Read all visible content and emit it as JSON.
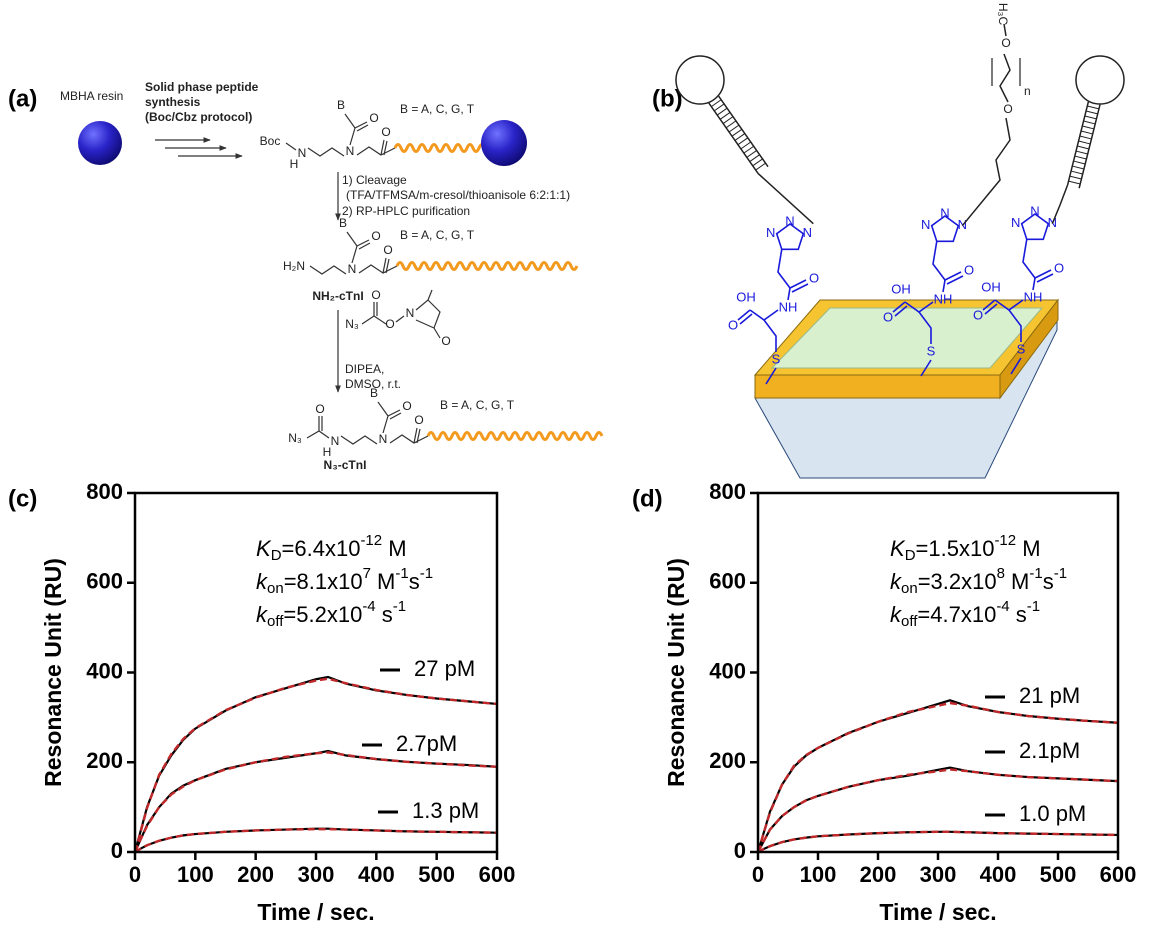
{
  "panel_a": {
    "label": "(a)",
    "resin": "MBHA resin",
    "step1": [
      "Solid phase peptide",
      "synthesis",
      "(Boc/Cbz protocol)"
    ],
    "bases": [
      "B = A, C, G, T",
      "B = A, C, G, T",
      "B = A, C, G, T"
    ],
    "s1": [
      "Boc",
      "N",
      "H",
      "N",
      "B",
      "O",
      "O"
    ],
    "cleavage": [
      "1) Cleavage",
      "(TFA/TFMSA/m-cresol/thioanisole 6:2:1:1)",
      "2) RP-HPLC purification"
    ],
    "s2": [
      "H₂N",
      "N",
      "B",
      "O",
      "O"
    ],
    "product1": "NH₂-cTnI",
    "reagent": [
      "N₃",
      "O",
      "N",
      "O",
      "O"
    ],
    "conditions": [
      "DIPEA,",
      "DMSO, r.t."
    ],
    "s3": [
      "N₃",
      "O",
      "N",
      "H",
      "N",
      "B",
      "O",
      "O"
    ],
    "product2": "N₃-cTnI"
  },
  "panel_b": {
    "label": "(b)",
    "units": [
      [
        "N",
        "N",
        "N",
        "O",
        "NH",
        "OH",
        "O",
        "S"
      ],
      [
        "N",
        "N",
        "N",
        "O",
        "NH",
        "OH",
        "O",
        "S"
      ],
      [
        "N",
        "N",
        "N",
        "O",
        "NH",
        "OH",
        "O",
        "S"
      ]
    ],
    "peg": [
      "O",
      "O",
      "n",
      "H₃C"
    ]
  },
  "chart_data": [
    {
      "type": "line",
      "label": "(c)",
      "xlabel": "Time / sec.",
      "ylabel": "Resonance Unit (RU)",
      "annotations": [
        [
          [
            "K",
            "i"
          ],
          [
            "D",
            "sub"
          ],
          [
            "=6.4x10",
            ""
          ],
          [
            "-12",
            "sup"
          ],
          [
            " M",
            ""
          ]
        ],
        [
          [
            "k",
            "i"
          ],
          [
            "on",
            "sub"
          ],
          [
            "=8.1x10",
            ""
          ],
          [
            "7",
            "sup"
          ],
          [
            " M",
            ""
          ],
          [
            "-1",
            "sup"
          ],
          [
            "s",
            ""
          ],
          [
            "-1",
            "sup"
          ]
        ],
        [
          [
            "k",
            "i"
          ],
          [
            "off",
            "sub"
          ],
          [
            "=5.2x10",
            ""
          ],
          [
            "-4",
            "sup"
          ],
          [
            " s",
            ""
          ],
          [
            "-1",
            "sup"
          ]
        ]
      ],
      "x": [
        0,
        10,
        20,
        40,
        60,
        80,
        100,
        150,
        200,
        250,
        300,
        320,
        350,
        400,
        450,
        500,
        550,
        600
      ],
      "xlim": [
        0,
        600
      ],
      "xticks": [
        0,
        100,
        200,
        300,
        400,
        500,
        600
      ],
      "ylim": [
        0,
        800
      ],
      "yticks": [
        0,
        200,
        400,
        600,
        800
      ],
      "series": [
        {
          "name": "27 pM",
          "color": "#000000",
          "values": [
            0,
            50,
            100,
            170,
            215,
            250,
            275,
            315,
            345,
            365,
            385,
            390,
            375,
            360,
            350,
            342,
            336,
            330
          ]
        },
        {
          "name": "2.7pM",
          "color": "#000000",
          "values": [
            0,
            30,
            60,
            100,
            130,
            148,
            160,
            185,
            200,
            210,
            220,
            225,
            215,
            207,
            201,
            197,
            194,
            190
          ]
        },
        {
          "name": "1.3 pM",
          "color": "#000000",
          "values": [
            0,
            8,
            15,
            25,
            32,
            37,
            40,
            45,
            48,
            50,
            52,
            52,
            50,
            48,
            46,
            45,
            44,
            43
          ]
        },
        {
          "color": "#c0282a",
          "dashed": true,
          "values": [
            0,
            48,
            98,
            172,
            218,
            252,
            276,
            316,
            344,
            366,
            382,
            386,
            376,
            361,
            350,
            342,
            336,
            330
          ]
        },
        {
          "color": "#c0282a",
          "dashed": true,
          "values": [
            0,
            30,
            58,
            100,
            128,
            146,
            160,
            184,
            200,
            212,
            220,
            222,
            216,
            207,
            201,
            197,
            193,
            190
          ]
        },
        {
          "color": "#c0282a",
          "dashed": true,
          "values": [
            0,
            8,
            15,
            25,
            32,
            37,
            40,
            45,
            48,
            50,
            51,
            51,
            50,
            48,
            46,
            45,
            44,
            43
          ]
        }
      ]
    },
    {
      "type": "line",
      "label": "(d)",
      "xlabel": "Time / sec.",
      "ylabel": "Resonance Unit (RU)",
      "annotations": [
        [
          [
            "K",
            "i"
          ],
          [
            "D",
            "sub"
          ],
          [
            "=1.5x10",
            ""
          ],
          [
            "-12",
            "sup"
          ],
          [
            " M",
            ""
          ]
        ],
        [
          [
            "k",
            "i"
          ],
          [
            "on",
            "sub"
          ],
          [
            "=3.2x10",
            ""
          ],
          [
            "8",
            "sup"
          ],
          [
            " M",
            ""
          ],
          [
            "-1",
            "sup"
          ],
          [
            "s",
            ""
          ],
          [
            "-1",
            "sup"
          ]
        ],
        [
          [
            "k",
            "i"
          ],
          [
            "off",
            "sub"
          ],
          [
            "=4.7x10",
            ""
          ],
          [
            "-4",
            "sup"
          ],
          [
            " s",
            ""
          ],
          [
            "-1",
            "sup"
          ]
        ]
      ],
      "x": [
        0,
        10,
        20,
        40,
        60,
        80,
        100,
        150,
        200,
        250,
        300,
        320,
        350,
        400,
        450,
        500,
        550,
        600
      ],
      "xlim": [
        0,
        600
      ],
      "xticks": [
        0,
        100,
        200,
        300,
        400,
        500,
        600
      ],
      "ylim": [
        0,
        800
      ],
      "yticks": [
        0,
        200,
        400,
        600,
        800
      ],
      "series": [
        {
          "name": "21 pM",
          "color": "#000000",
          "values": [
            0,
            45,
            90,
            150,
            190,
            215,
            232,
            265,
            290,
            310,
            330,
            338,
            325,
            312,
            303,
            297,
            292,
            288
          ]
        },
        {
          "name": "2.1pM",
          "color": "#000000",
          "values": [
            0,
            25,
            50,
            80,
            100,
            115,
            125,
            145,
            160,
            170,
            183,
            188,
            180,
            172,
            167,
            164,
            161,
            158
          ]
        },
        {
          "name": "1.0 pM",
          "color": "#000000",
          "values": [
            0,
            7,
            13,
            22,
            28,
            32,
            35,
            39,
            42,
            44,
            45,
            45,
            44,
            42,
            41,
            40,
            39,
            38
          ]
        },
        {
          "color": "#c0282a",
          "dashed": true,
          "values": [
            0,
            44,
            88,
            150,
            192,
            216,
            232,
            264,
            290,
            312,
            326,
            332,
            326,
            312,
            303,
            297,
            292,
            288
          ]
        },
        {
          "color": "#c0282a",
          "dashed": true,
          "values": [
            0,
            25,
            50,
            80,
            100,
            115,
            125,
            145,
            160,
            172,
            180,
            184,
            180,
            172,
            167,
            164,
            161,
            158
          ]
        },
        {
          "color": "#c0282a",
          "dashed": true,
          "values": [
            0,
            7,
            13,
            22,
            28,
            32,
            35,
            39,
            42,
            44,
            45,
            45,
            44,
            42,
            41,
            40,
            39,
            38
          ]
        }
      ]
    }
  ]
}
